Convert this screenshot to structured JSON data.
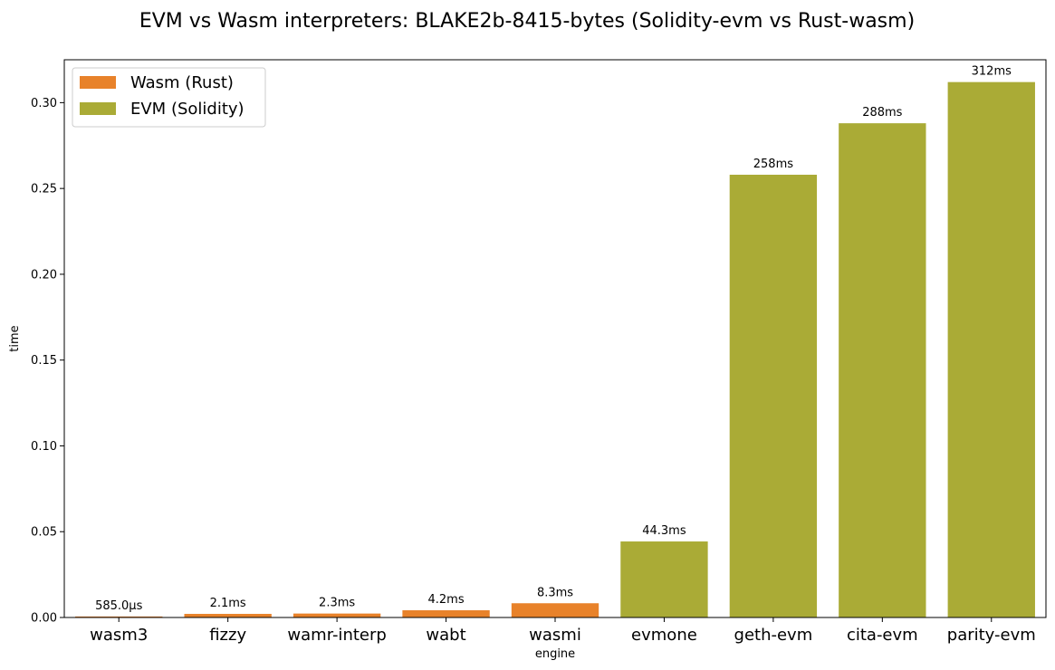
{
  "chart_data": {
    "type": "bar",
    "title": "EVM vs Wasm interpreters: BLAKE2b-8415-bytes (Solidity-evm vs Rust-wasm)",
    "xlabel": "engine",
    "ylabel": "time",
    "ylim": [
      0,
      0.325
    ],
    "yticks": [
      "0.00",
      "0.05",
      "0.10",
      "0.15",
      "0.20",
      "0.25",
      "0.30"
    ],
    "yticks_values": [
      0,
      0.05,
      0.1,
      0.15,
      0.2,
      0.25,
      0.3
    ],
    "legend_position": "top-left",
    "colors": {
      "wasm": "#e8822a",
      "evm": "#aaab36"
    },
    "series": [
      {
        "name": "Wasm (Rust)",
        "key": "wasm"
      },
      {
        "name": "EVM (Solidity)",
        "key": "evm"
      }
    ],
    "categories": [
      "wasm3",
      "fizzy",
      "wamr-interp",
      "wabt",
      "wasmi",
      "evmone",
      "geth-evm",
      "cita-evm",
      "parity-evm"
    ],
    "values": [
      0.000585,
      0.0021,
      0.0023,
      0.0042,
      0.0083,
      0.0443,
      0.258,
      0.288,
      0.312
    ],
    "groups": [
      "wasm",
      "wasm",
      "wasm",
      "wasm",
      "wasm",
      "evm",
      "evm",
      "evm",
      "evm"
    ],
    "data_labels": [
      "585.0µs",
      "2.1ms",
      "2.3ms",
      "4.2ms",
      "8.3ms",
      "44.3ms",
      "258ms",
      "288ms",
      "312ms"
    ]
  }
}
